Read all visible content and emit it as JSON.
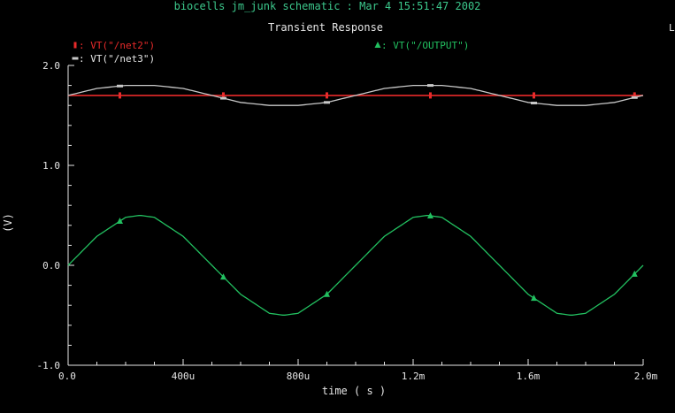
{
  "header": {
    "title": "biocells jm_junk schematic : Mar  4 15:51:47 2002",
    "subtitle": "Transient Response",
    "corner_marker": "L"
  },
  "colors": {
    "background": "#000000",
    "title": "#3cc88c",
    "subtitle": "#e6e6e6",
    "axis": "#e6e6e6",
    "net2": "#e82a2a",
    "net3": "#c8c8c8",
    "output": "#22c060"
  },
  "chart_data": {
    "type": "line",
    "title": "Transient Response",
    "xlabel": "time ( s )",
    "ylabel": "(V)",
    "xlim": [
      0,
      0.002
    ],
    "ylim": [
      -1.0,
      2.0
    ],
    "x_ticks": [
      {
        "value": 0,
        "label": "0.0"
      },
      {
        "value": 0.0004,
        "label": "400u"
      },
      {
        "value": 0.0008,
        "label": "800u"
      },
      {
        "value": 0.0012,
        "label": "1.2m"
      },
      {
        "value": 0.0016,
        "label": "1.6m"
      },
      {
        "value": 0.002,
        "label": "2.0m"
      }
    ],
    "y_ticks": [
      {
        "value": 2.0,
        "label": "2.0"
      },
      {
        "value": 1.0,
        "label": "1.0"
      },
      {
        "value": 0.0,
        "label": "0.0"
      },
      {
        "value": -1.0,
        "label": "-1.0"
      }
    ],
    "grid": false,
    "legend": [
      {
        "name": "VT(\"/net2\")",
        "marker": "bar",
        "color": "#e82a2a",
        "series": "net2"
      },
      {
        "name": "VT(\"/net3\")",
        "marker": "dash",
        "color": "#c8c8c8",
        "series": "net3"
      },
      {
        "name": "VT(\"/OUTPUT\")",
        "marker": "triangle",
        "color": "#22c060",
        "series": "output"
      }
    ],
    "series": [
      {
        "name": "VT(\"/net2\")",
        "key": "net2",
        "marker": "bar",
        "x": [
          0,
          0.0002,
          0.0004,
          0.0006,
          0.0008,
          0.001,
          0.0012,
          0.0014,
          0.0016,
          0.0018,
          0.002
        ],
        "values": [
          1.7,
          1.7,
          1.7,
          1.7,
          1.7,
          1.7,
          1.7,
          1.7,
          1.7,
          1.7,
          1.7
        ],
        "marker_x": [
          0.00018,
          0.00054,
          0.0009,
          0.00126,
          0.00162,
          0.00197
        ]
      },
      {
        "name": "VT(\"/net3\")",
        "key": "net3",
        "marker": "dash",
        "x": [
          0,
          0.0001,
          0.0002,
          0.00025,
          0.0003,
          0.0004,
          0.0005,
          0.0006,
          0.0007,
          0.00075,
          0.0008,
          0.0009,
          0.001,
          0.0011,
          0.0012,
          0.00125,
          0.0013,
          0.0014,
          0.0015,
          0.0016,
          0.0017,
          0.00175,
          0.0018,
          0.0019,
          0.002
        ],
        "values": [
          1.7,
          1.77,
          1.8,
          1.8,
          1.8,
          1.77,
          1.7,
          1.63,
          1.6,
          1.6,
          1.6,
          1.63,
          1.7,
          1.77,
          1.8,
          1.8,
          1.8,
          1.77,
          1.7,
          1.63,
          1.6,
          1.6,
          1.6,
          1.63,
          1.7
        ],
        "marker_x": [
          0.00018,
          0.00054,
          0.0009,
          0.00126,
          0.00162,
          0.00197
        ]
      },
      {
        "name": "VT(\"/OUTPUT\")",
        "key": "output",
        "marker": "triangle",
        "x": [
          0,
          0.0001,
          0.0002,
          0.00025,
          0.0003,
          0.0004,
          0.0005,
          0.0006,
          0.0007,
          0.00075,
          0.0008,
          0.0009,
          0.001,
          0.0011,
          0.0012,
          0.00125,
          0.0013,
          0.0014,
          0.0015,
          0.0016,
          0.0017,
          0.00175,
          0.0018,
          0.0019,
          0.002
        ],
        "values": [
          0,
          0.29,
          0.48,
          0.5,
          0.48,
          0.29,
          0,
          -0.29,
          -0.48,
          -0.5,
          -0.48,
          -0.29,
          0,
          0.29,
          0.48,
          0.5,
          0.48,
          0.29,
          0,
          -0.29,
          -0.48,
          -0.5,
          -0.48,
          -0.29,
          0
        ],
        "marker_x": [
          0.00018,
          0.00054,
          0.0009,
          0.00126,
          0.00162,
          0.00197
        ]
      }
    ]
  }
}
